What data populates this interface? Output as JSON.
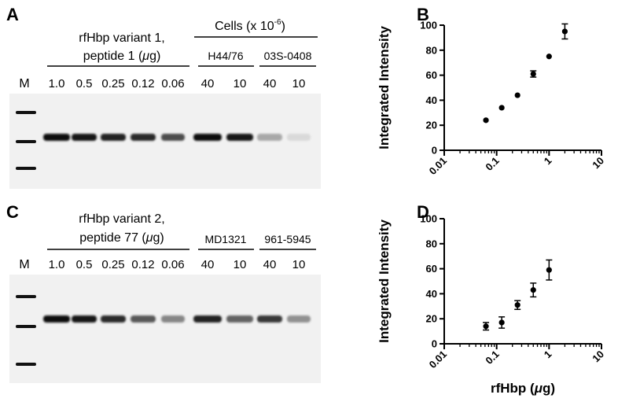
{
  "panels": {
    "A": "A",
    "B": "B",
    "C": "C",
    "D": "D"
  },
  "gel_a": {
    "group_title_line1": "rfHbp variant 1,",
    "group_title_line2": "peptide 1 (",
    "group_title_mu": "μ",
    "group_title_unit": "g)",
    "cells_title": "Cells (x 10",
    "cells_exp": "-6",
    "cells_close": ")",
    "strain1": "H44/76",
    "strain2": "03S-0408",
    "marker": "M",
    "lanes": [
      "1.0",
      "0.5",
      "0.25",
      "0.12",
      "0.06",
      "40",
      "10",
      "40",
      "10"
    ],
    "band_intensity": [
      1.0,
      0.95,
      0.9,
      0.85,
      0.7,
      1.0,
      0.95,
      0.3,
      0.08
    ]
  },
  "gel_c": {
    "group_title_line1": "rfHbp variant 2,",
    "group_title_line2": "peptide 77 (",
    "group_title_mu": "μ",
    "group_title_unit": "g)",
    "strain1": "MD1321",
    "strain2": "961-5945",
    "marker": "M",
    "lanes": [
      "1.0",
      "0.5",
      "0.25",
      "0.12",
      "0.06",
      "40",
      "10",
      "40",
      "10"
    ],
    "band_intensity": [
      1.0,
      0.95,
      0.85,
      0.65,
      0.45,
      0.9,
      0.6,
      0.8,
      0.4
    ]
  },
  "chart_data": [
    {
      "type": "scatter",
      "panel": "B",
      "ylabel": "Integrated Intensity",
      "xlabel": "",
      "xscale": "log",
      "xlim": [
        0.01,
        10
      ],
      "ylim": [
        0,
        100
      ],
      "xticks": [
        "0.01",
        "0.1",
        "1",
        "10"
      ],
      "yticks": [
        "0",
        "20",
        "40",
        "60",
        "80",
        "100"
      ],
      "series": [
        {
          "x": [
            0.0625,
            0.125,
            0.25,
            0.5,
            1.0,
            2.0
          ],
          "y": [
            24,
            34,
            44,
            61,
            75,
            95
          ],
          "err": [
            0,
            0,
            0,
            2.5,
            0,
            6
          ]
        }
      ]
    },
    {
      "type": "scatter",
      "panel": "D",
      "ylabel": "Integrated Intensity",
      "xlabel_prefix": "rfHbp (",
      "xlabel_mu": "μ",
      "xlabel_suffix": "g)",
      "xscale": "log",
      "xlim": [
        0.01,
        10
      ],
      "ylim": [
        0,
        100
      ],
      "xticks": [
        "0.01",
        "0.1",
        "1",
        "10"
      ],
      "yticks": [
        "0",
        "20",
        "40",
        "60",
        "80",
        "100"
      ],
      "series": [
        {
          "x": [
            0.0625,
            0.125,
            0.25,
            0.5,
            1.0
          ],
          "y": [
            14,
            17,
            31,
            43,
            59
          ],
          "err": [
            3,
            4.5,
            3.5,
            5.5,
            8
          ]
        }
      ]
    }
  ]
}
